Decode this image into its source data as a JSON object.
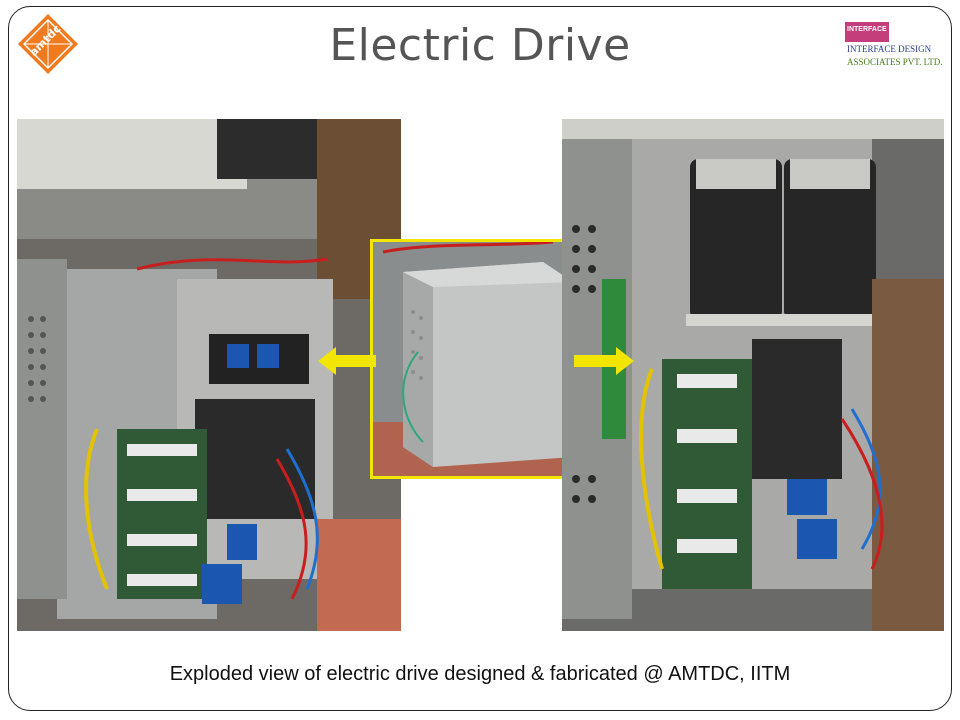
{
  "title": "Electric Drive",
  "caption": "Exploded view of electric drive designed & fabricated @ AMTDC, IITM",
  "logos": {
    "amtdc": "amtdc",
    "interface_badge": "INTERFACE",
    "interface_line1": "INTERFACE DESIGN",
    "interface_line2": "ASSOCIATES PVT. LTD."
  },
  "photos": {
    "left": "photo",
    "center": "photo",
    "right": "photo"
  },
  "colors": {
    "highlight": "#f2e600",
    "amtdc_orange": "#f07a1e",
    "interface_magenta": "#c33e7a"
  }
}
